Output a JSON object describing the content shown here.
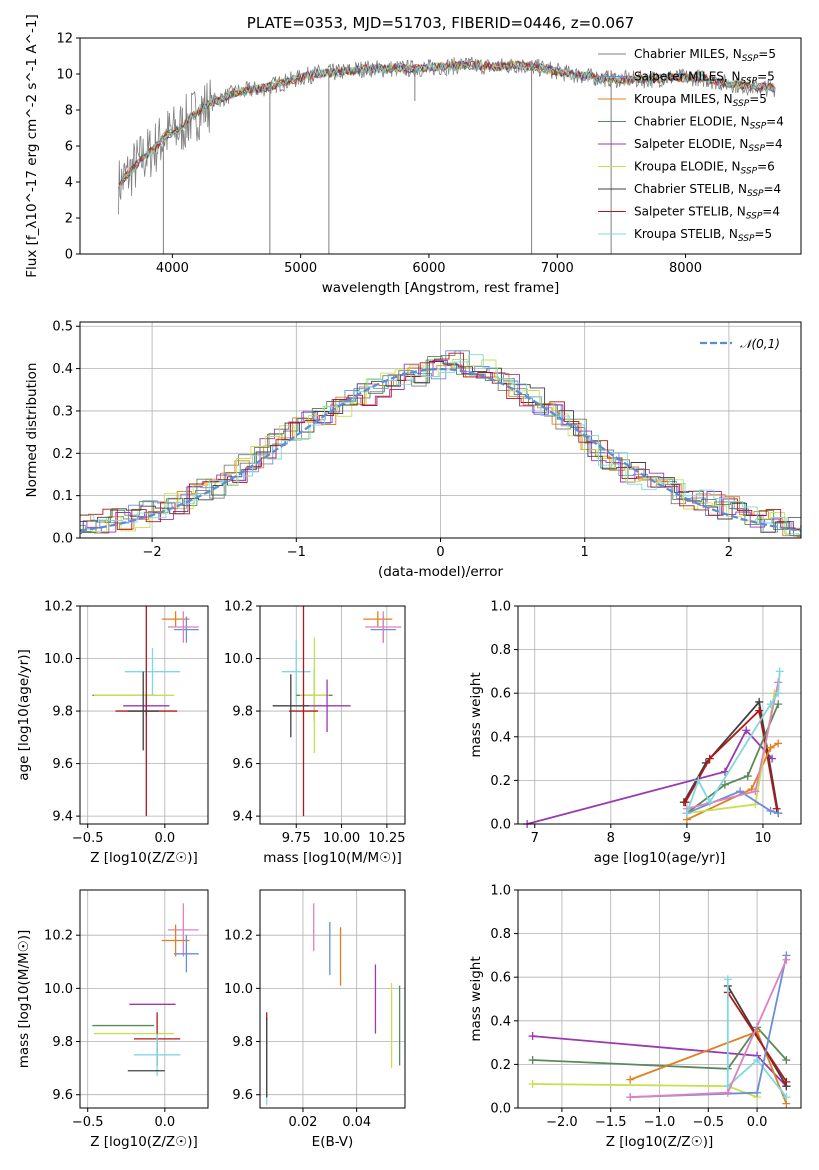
{
  "chart_data": [
    {
      "type": "line",
      "title": "PLATE=0353, MJD=51703, FIBERID=0446, z=0.067",
      "xlabel": "wavelength [Angstrom, rest frame]",
      "ylabel": "Flux [f_λ10^-17 erg cm^-2 s^-1 A^-1]",
      "xlim": [
        3280,
        8900
      ],
      "ylim": [
        0,
        12
      ],
      "xticks": [
        "4000",
        "5000",
        "6000",
        "7000",
        "8000"
      ],
      "yticks": [
        "0",
        "2",
        "4",
        "6",
        "8",
        "10",
        "12"
      ],
      "grid": false,
      "legend_position": "right",
      "series_colors": [
        "#7f7f7f",
        "#6a8fd8",
        "#e0801f",
        "#5a8a5a",
        "#9a3ab0",
        "#c8e050",
        "#404040",
        "#b01818",
        "#7fd8e0"
      ],
      "legend": [
        {
          "name": "Chabrier MILES, N",
          "sub": "SSP",
          "tail": "=5"
        },
        {
          "name": "Salpeter MILES, N",
          "sub": "SSP",
          "tail": "=5"
        },
        {
          "name": "Kroupa MILES, N",
          "sub": "SSP",
          "tail": "=5"
        },
        {
          "name": "Chabrier ELODIE, N",
          "sub": "SSP",
          "tail": "=4"
        },
        {
          "name": "Salpeter ELODIE, N",
          "sub": "SSP",
          "tail": "=4"
        },
        {
          "name": "Kroupa ELODIE, N",
          "sub": "SSP",
          "tail": "=6"
        },
        {
          "name": "Chabrier STELIB, N",
          "sub": "SSP",
          "tail": "=4"
        },
        {
          "name": "Salpeter STELIB, N",
          "sub": "SSP",
          "tail": "=4"
        },
        {
          "name": "Kroupa STELIB, N",
          "sub": "SSP",
          "tail": "=5"
        }
      ],
      "spectrum": {
        "x": [
          3580,
          3650,
          3750,
          3850,
          3950,
          4050,
          4150,
          4300,
          4500,
          4700,
          4900,
          5100,
          5300,
          5500,
          5700,
          5900,
          6100,
          6300,
          6500,
          6700,
          6900,
          7100,
          7300,
          7500,
          7700,
          7900,
          8100,
          8300,
          8500,
          8700
        ],
        "y": [
          3.8,
          4.4,
          5.2,
          5.8,
          6.6,
          6.9,
          7.6,
          8.4,
          9.0,
          9.2,
          9.6,
          10.0,
          10.1,
          10.3,
          10.3,
          10.3,
          10.4,
          10.5,
          10.4,
          10.5,
          10.3,
          10.0,
          9.8,
          9.7,
          9.7,
          9.8,
          9.8,
          9.5,
          9.3,
          9.2
        ],
        "absorption_dips": [
          {
            "x": 3930,
            "y": 0.0
          },
          {
            "x": 4760,
            "y": 0.0
          },
          {
            "x": 5220,
            "y": 0.0
          },
          {
            "x": 5890,
            "y": 8.5
          },
          {
            "x": 6800,
            "y": 0.0
          },
          {
            "x": 7420,
            "y": 0.0
          }
        ]
      }
    },
    {
      "type": "bar",
      "title": "",
      "xlabel": "(data-model)/error",
      "ylabel": "Normed distribution",
      "xlim": [
        -2.5,
        2.5
      ],
      "ylim": [
        0,
        0.51
      ],
      "xticks": [
        "−2",
        "−1",
        "0",
        "1",
        "2"
      ],
      "yticks": [
        "0.0",
        "0.1",
        "0.2",
        "0.3",
        "0.4",
        "0.5"
      ],
      "grid": true,
      "legend_position": "upper right",
      "legend_label": "𝒩(0,1)",
      "histogram_envelope": {
        "x": [
          -2.45,
          -2.3,
          -2.1,
          -1.9,
          -1.7,
          -1.5,
          -1.3,
          -1.1,
          -0.9,
          -0.7,
          -0.5,
          -0.3,
          -0.1,
          0.1,
          0.3,
          0.5,
          0.7,
          0.9,
          1.1,
          1.3,
          1.5,
          1.7,
          1.9,
          2.1,
          2.3,
          2.45
        ],
        "y": [
          0.03,
          0.04,
          0.05,
          0.07,
          0.1,
          0.13,
          0.18,
          0.23,
          0.27,
          0.31,
          0.34,
          0.38,
          0.39,
          0.42,
          0.4,
          0.36,
          0.32,
          0.27,
          0.21,
          0.16,
          0.13,
          0.1,
          0.08,
          0.06,
          0.04,
          0.03
        ]
      }
    },
    {
      "type": "scatter",
      "xlabel": "Z [log10(Z/Z☉)]",
      "ylabel": "age  [log10(age/yr)]",
      "xlim": [
        -0.55,
        0.28
      ],
      "ylim": [
        9.37,
        10.2
      ],
      "xticks": [
        "−0.5",
        "0.0"
      ],
      "yticks": [
        "9.4",
        "9.6",
        "9.8",
        "10.0",
        "10.2"
      ],
      "points": [
        {
          "x": 0.07,
          "y": 10.15,
          "xerr": 0.09,
          "yerr": 0.03,
          "c": "#e0801f"
        },
        {
          "x": 0.14,
          "y": 10.11,
          "xerr": 0.08,
          "yerr": 0.05,
          "c": "#6a8fd8"
        },
        {
          "x": 0.12,
          "y": 10.12,
          "xerr": 0.1,
          "yerr": 0.06,
          "c": "#e080c0"
        },
        {
          "x": -0.08,
          "y": 9.95,
          "xerr": 0.18,
          "yerr": 0.09,
          "c": "#7fd8e0"
        },
        {
          "x": -0.27,
          "y": 9.86,
          "xerr": 0.2,
          "yerr": 0.0,
          "c": "#5a8a5a"
        },
        {
          "x": -0.2,
          "y": 9.86,
          "xerr": 0.26,
          "yerr": 0.0,
          "c": "#c8e050"
        },
        {
          "x": -0.12,
          "y": 9.82,
          "xerr": 0.15,
          "yerr": 0.04,
          "c": "#9a3ab0"
        },
        {
          "x": -0.12,
          "y": 9.8,
          "xerr": 0.2,
          "yerr": 0.4,
          "c": "#b01818"
        },
        {
          "x": -0.14,
          "y": 9.8,
          "xerr": 0.1,
          "yerr": 0.15,
          "c": "#404040"
        }
      ]
    },
    {
      "type": "scatter",
      "xlabel": "mass [log10(M/M☉)]",
      "ylabel": "",
      "xlim": [
        9.55,
        10.35
      ],
      "ylim": [
        9.37,
        10.2
      ],
      "xticks": [
        "9.75",
        "10.00",
        "10.25"
      ],
      "yticks": [
        "9.4",
        "9.6",
        "9.8",
        "10.0",
        "10.2"
      ],
      "points": [
        {
          "x": 10.2,
          "y": 10.15,
          "xerr": 0.08,
          "yerr": 0.03,
          "c": "#e0801f"
        },
        {
          "x": 10.23,
          "y": 10.11,
          "xerr": 0.07,
          "yerr": 0.05,
          "c": "#6a8fd8"
        },
        {
          "x": 10.23,
          "y": 10.12,
          "xerr": 0.1,
          "yerr": 0.06,
          "c": "#e080c0"
        },
        {
          "x": 9.75,
          "y": 9.95,
          "xerr": 0.08,
          "yerr": 0.12,
          "c": "#7fd8e0"
        },
        {
          "x": 9.85,
          "y": 9.86,
          "xerr": 0.1,
          "yerr": 0.1,
          "c": "#5a8a5a"
        },
        {
          "x": 9.85,
          "y": 9.86,
          "xerr": 0.08,
          "yerr": 0.22,
          "c": "#c8e050"
        },
        {
          "x": 9.92,
          "y": 9.82,
          "xerr": 0.13,
          "yerr": 0.1,
          "c": "#9a3ab0"
        },
        {
          "x": 9.79,
          "y": 9.8,
          "xerr": 0.08,
          "yerr": 0.4,
          "c": "#b01818"
        },
        {
          "x": 9.72,
          "y": 9.82,
          "xerr": 0.1,
          "yerr": 0.12,
          "c": "#404040"
        }
      ]
    },
    {
      "type": "line",
      "xlabel": "age  [log10(age/yr)]",
      "ylabel": "mass weight",
      "xlim": [
        6.78,
        10.5
      ],
      "ylim": [
        0,
        1.0
      ],
      "xticks": [
        "7",
        "8",
        "9",
        "10"
      ],
      "yticks": [
        "0.0",
        "0.2",
        "0.4",
        "0.6",
        "0.8",
        "1.0"
      ],
      "grid": true,
      "series": [
        {
          "c": "#9a3ab0",
          "x": [
            6.9,
            9.5,
            9.78,
            10.12
          ],
          "y": [
            0.0,
            0.24,
            0.43,
            0.3
          ]
        },
        {
          "c": "#404040",
          "x": [
            8.96,
            9.25,
            9.95,
            10.2
          ],
          "y": [
            0.1,
            0.28,
            0.56,
            0.05
          ]
        },
        {
          "c": "#b01818",
          "x": [
            8.98,
            9.3,
            9.95,
            10.18
          ],
          "y": [
            0.1,
            0.3,
            0.52,
            0.07
          ]
        },
        {
          "c": "#5a8a5a",
          "x": [
            9.0,
            9.5,
            9.8,
            10.2
          ],
          "y": [
            0.05,
            0.18,
            0.22,
            0.55
          ]
        },
        {
          "c": "#e0801f",
          "x": [
            9.0,
            9.85,
            10.1,
            10.2
          ],
          "y": [
            0.02,
            0.16,
            0.35,
            0.37
          ]
        },
        {
          "c": "#c8e050",
          "x": [
            9.0,
            9.9,
            10.15
          ],
          "y": [
            0.05,
            0.09,
            0.6
          ]
        },
        {
          "c": "#6a8fd8",
          "x": [
            9.0,
            9.7,
            10.1,
            10.2
          ],
          "y": [
            0.05,
            0.15,
            0.06,
            0.05
          ]
        },
        {
          "c": "#e080c0",
          "x": [
            9.0,
            9.9,
            10.2
          ],
          "y": [
            0.07,
            0.15,
            0.65
          ]
        },
        {
          "c": "#7fd8e0",
          "x": [
            9.0,
            9.15,
            9.3,
            10.1,
            10.2,
            10.22
          ],
          "y": [
            0.05,
            0.2,
            0.1,
            0.55,
            0.6,
            0.7
          ]
        }
      ]
    },
    {
      "type": "scatter",
      "xlabel": "Z [log10(Z/Z☉)]",
      "ylabel": "mass [log10(M/M☉)]",
      "xlim": [
        -0.55,
        0.28
      ],
      "ylim": [
        9.55,
        10.37
      ],
      "xticks": [
        "−0.5",
        "0.0"
      ],
      "yticks": [
        "9.6",
        "9.8",
        "10.0",
        "10.2"
      ],
      "points": [
        {
          "x": 0.12,
          "y": 10.22,
          "xerr": 0.1,
          "yerr": 0.1,
          "c": "#e080c0"
        },
        {
          "x": 0.07,
          "y": 10.18,
          "xerr": 0.09,
          "yerr": 0.06,
          "c": "#e0801f"
        },
        {
          "x": 0.14,
          "y": 10.13,
          "xerr": 0.08,
          "yerr": 0.07,
          "c": "#6a8fd8"
        },
        {
          "x": -0.08,
          "y": 9.94,
          "xerr": 0.15,
          "yerr": 0.0,
          "c": "#9a3ab0"
        },
        {
          "x": -0.27,
          "y": 9.86,
          "xerr": 0.2,
          "yerr": 0.0,
          "c": "#5a8a5a"
        },
        {
          "x": -0.2,
          "y": 9.83,
          "xerr": 0.26,
          "yerr": 0.0,
          "c": "#c8e050"
        },
        {
          "x": -0.05,
          "y": 9.81,
          "xerr": 0.15,
          "yerr": 0.1,
          "c": "#b01818"
        },
        {
          "x": -0.05,
          "y": 9.75,
          "xerr": 0.15,
          "yerr": 0.08,
          "c": "#7fd8e0"
        },
        {
          "x": -0.12,
          "y": 9.69,
          "xerr": 0.12,
          "yerr": 0.0,
          "c": "#404040"
        }
      ]
    },
    {
      "type": "scatter",
      "xlabel": "E(B-V)",
      "ylabel": "",
      "xlim": [
        0.004,
        0.058
      ],
      "ylim": [
        9.55,
        10.37
      ],
      "xticks": [
        "0.02",
        "0.04"
      ],
      "yticks": [
        "9.6",
        "9.8",
        "10.0",
        "10.2"
      ],
      "points": [
        {
          "x": 0.024,
          "y": 10.23,
          "xerr": 0,
          "yerr": 0.09,
          "c": "#e080c0"
        },
        {
          "x": 0.034,
          "y": 10.12,
          "xerr": 0,
          "yerr": 0.11,
          "c": "#e0801f"
        },
        {
          "x": 0.03,
          "y": 10.15,
          "xerr": 0,
          "yerr": 0.1,
          "c": "#6a8fd8"
        },
        {
          "x": 0.047,
          "y": 9.96,
          "xerr": 0,
          "yerr": 0.13,
          "c": "#9a3ab0"
        },
        {
          "x": 0.056,
          "y": 9.86,
          "xerr": 0,
          "yerr": 0.15,
          "c": "#5a8a5a"
        },
        {
          "x": 0.053,
          "y": 9.86,
          "xerr": 0,
          "yerr": 0.16,
          "c": "#c8e050"
        },
        {
          "x": 0.0065,
          "y": 9.75,
          "xerr": 0,
          "yerr": 0.16,
          "c": "#b01818"
        },
        {
          "x": 0.0065,
          "y": 9.72,
          "xerr": 0,
          "yerr": 0.16,
          "c": "#7fd8e0"
        },
        {
          "x": 0.0065,
          "y": 9.74,
          "xerr": 0,
          "yerr": 0.15,
          "c": "#404040"
        }
      ]
    },
    {
      "type": "line",
      "xlabel": "Z [log10(Z/Z☉)]",
      "ylabel": "mass weight",
      "xlim": [
        -2.45,
        0.45
      ],
      "ylim": [
        0,
        1.0
      ],
      "xticks": [
        "−2.0",
        "−1.5",
        "−1.0",
        "−0.5",
        "0.0"
      ],
      "yticks": [
        "0.0",
        "0.2",
        "0.4",
        "0.6",
        "0.8",
        "1.0"
      ],
      "grid": true,
      "series": [
        {
          "c": "#9a3ab0",
          "x": [
            -2.3,
            0.0,
            0.3
          ],
          "y": [
            0.33,
            0.24,
            0.1
          ]
        },
        {
          "c": "#5a8a5a",
          "x": [
            -2.3,
            -0.3,
            0.0,
            0.3
          ],
          "y": [
            0.22,
            0.18,
            0.37,
            0.22
          ]
        },
        {
          "c": "#c8e050",
          "x": [
            -2.3,
            -0.3,
            0.0
          ],
          "y": [
            0.11,
            0.1,
            0.05
          ]
        },
        {
          "c": "#e0801f",
          "x": [
            -1.3,
            0.0,
            0.3
          ],
          "y": [
            0.13,
            0.35,
            0.02
          ]
        },
        {
          "c": "#404040",
          "x": [
            -0.3,
            0.3
          ],
          "y": [
            0.56,
            0.1
          ]
        },
        {
          "c": "#b01818",
          "x": [
            -0.3,
            0.3
          ],
          "y": [
            0.53,
            0.12
          ]
        },
        {
          "c": "#7fd8e0",
          "x": [
            -0.3,
            -0.3,
            0.0,
            0.3
          ],
          "y": [
            0.59,
            0.1,
            0.22,
            0.05
          ]
        },
        {
          "c": "#6a8fd8",
          "x": [
            -1.3,
            0.0,
            0.3
          ],
          "y": [
            0.05,
            0.07,
            0.7
          ]
        },
        {
          "c": "#e080c0",
          "x": [
            -1.3,
            -0.3,
            0.3
          ],
          "y": [
            0.05,
            0.07,
            0.68
          ]
        }
      ]
    }
  ]
}
